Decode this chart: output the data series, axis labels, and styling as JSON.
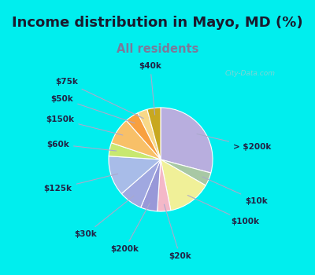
{
  "title": "Income distribution in Mayo, MD (%)",
  "subtitle": "All residents",
  "title_color": "#1a1a2e",
  "subtitle_color": "#7a7a9a",
  "bg_color": "#00EEEE",
  "chart_bg_top": "#e8f8f0",
  "chart_bg_bottom": "#d0eee0",
  "labels": [
    "> $200k",
    "$10k",
    "$100k",
    "$20k",
    "$200k",
    "$30k",
    "$125k",
    "$60k",
    "$150k",
    "$50k",
    "$75k",
    "$40k"
  ],
  "values": [
    28,
    4,
    13,
    4,
    5,
    7,
    12,
    4,
    8,
    4,
    3,
    4
  ],
  "colors": [
    "#b8aede",
    "#a8c8a4",
    "#f0f098",
    "#f4b8c8",
    "#9898d8",
    "#a0a8e0",
    "#a8bce8",
    "#c8e870",
    "#f8c068",
    "#f8a040",
    "#f8d888",
    "#c8a820"
  ],
  "startangle": 90,
  "label_fontsize": 7.5,
  "title_fontsize": 13,
  "subtitle_fontsize": 10.5
}
